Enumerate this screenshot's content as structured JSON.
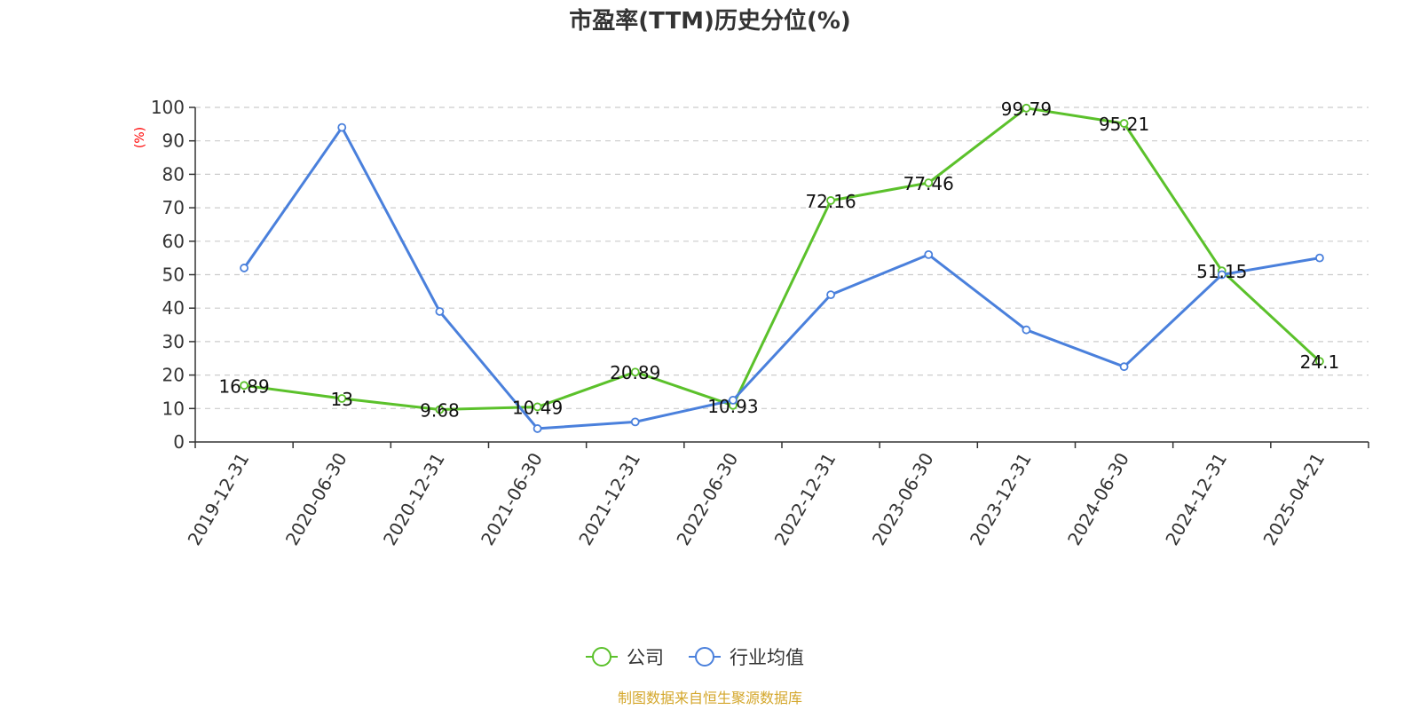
{
  "chart_data": {
    "type": "line",
    "title": "市盈率(TTM)历史分位(%)",
    "ylabel": "(%)",
    "ylim": [
      0,
      100
    ],
    "yticks": [
      0,
      10,
      20,
      30,
      40,
      50,
      60,
      70,
      80,
      90,
      100
    ],
    "grid": true,
    "legend_position": "bottom-center",
    "categories": [
      "2019-12-31",
      "2020-06-30",
      "2020-12-31",
      "2021-06-30",
      "2021-12-31",
      "2022-06-30",
      "2022-12-31",
      "2023-06-30",
      "2023-12-31",
      "2024-06-30",
      "2024-12-31",
      "2025-04-21"
    ],
    "series": [
      {
        "name": "公司",
        "color": "#5bc12b",
        "values": [
          16.89,
          13,
          9.68,
          10.49,
          20.89,
          10.93,
          72.16,
          77.46,
          99.79,
          95.21,
          51.15,
          24.1
        ],
        "labels": [
          "16.89",
          "13",
          "9.68",
          "10.49",
          "20.89",
          "10.93",
          "72.16",
          "77.46",
          "99.79",
          "95.21",
          "51.15",
          "24.1"
        ]
      },
      {
        "name": "行业均值",
        "color": "#4a80dc",
        "values": [
          52,
          94,
          39,
          4,
          6,
          12.5,
          44,
          56,
          33.5,
          22.5,
          50,
          55
        ]
      }
    ]
  },
  "source_text": "制图数据来自恒生聚源数据库"
}
